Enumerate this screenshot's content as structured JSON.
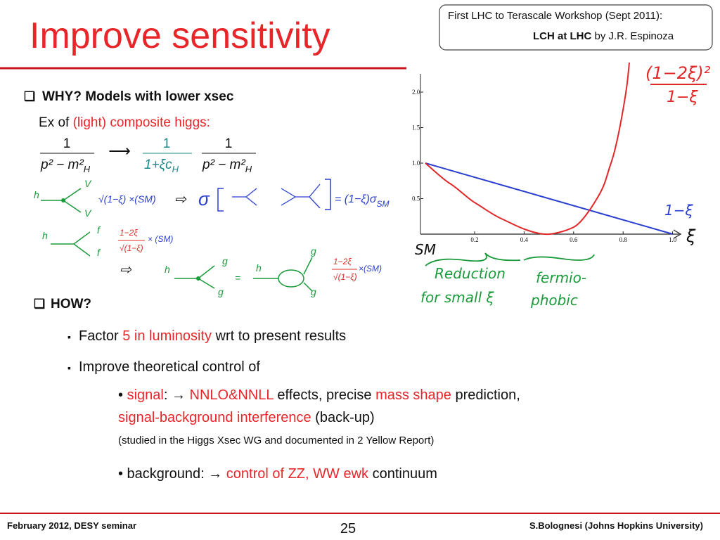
{
  "header": {
    "title": "Improve sensitivity",
    "box": {
      "line1": "First LHC to Terascale Workshop (Sept 2011):",
      "line2_bold": "LCH at LHC",
      "line2_rest": "by J.R. Espinoza"
    }
  },
  "why": {
    "heading": "WHY? Models with lower xsec",
    "example": {
      "prefix": "Ex of",
      "highlight": "(light) composite higgs:"
    },
    "formula": {
      "num1": "1",
      "den1": "p² − m²",
      "sub1": "H",
      "arrow": "⟶",
      "num2": "1",
      "den2": "1+ξc",
      "sub2": "H",
      "num3": "1",
      "den3": "p² − m²",
      "sub3": "H"
    },
    "diagram": {
      "h1": "h",
      "v1": "V",
      "v2": "V",
      "factor1": "√(1−ξ) ×(SM)",
      "implies1": "⇨",
      "sigma": "σ",
      "result": "= (1−ξ)σ",
      "result_sub": "SM",
      "h2": "h",
      "f1": "f",
      "f2": "f",
      "factor2_num": "1−2ξ",
      "factor2_den": "√(1−ξ)",
      "factor2_sm": "× (SM)",
      "implies2": "⇨",
      "h3": "h",
      "g1": "g",
      "g2": "g",
      "equals": "=",
      "h4": "h",
      "g3": "g",
      "g4": "g",
      "factor3_num": "1−2ξ",
      "factor3_den": "√(1−ξ)",
      "factor3_sm": "×(SM)"
    }
  },
  "plot": {
    "yticks": [
      "2.0",
      "1.5",
      "1.0",
      "0.5"
    ],
    "xticks": [
      "0.2",
      "0.4",
      "0.6",
      "0.8",
      "1.0"
    ],
    "red_label_num": "(1−2ξ)²",
    "red_label_den": "1−ξ",
    "blue_label": "1−ξ",
    "x_label": "ξ",
    "sm_label": "SM",
    "notes": [
      "Reduction",
      "for small ξ",
      "fermio-",
      "phobic"
    ]
  },
  "how": {
    "heading": "HOW?",
    "bullet1": {
      "prefix": "Factor",
      "highlight": "5 in luminosity",
      "rest": "wrt to present results"
    },
    "bullet2": "Improve theoretical control of",
    "signal": {
      "label": "signal",
      "arrow": ": →",
      "h1": "NNLO&NNLL",
      "t1": "effects, precise",
      "h2": "mass shape",
      "t2": "prediction,",
      "h3": "signal-background interference",
      "t3": "(back-up)",
      "note": "(studied in the Higgs Xsec WG and documented in 2 Yellow Report)"
    },
    "background": {
      "label": "• background: →",
      "highlight": "control of ZZ, WW ewk",
      "rest": "continuum"
    }
  },
  "footer": {
    "left": "February 2012, DESY seminar",
    "page": "25",
    "right": "S.Bolognesi (Johns Hopkins University)"
  }
}
